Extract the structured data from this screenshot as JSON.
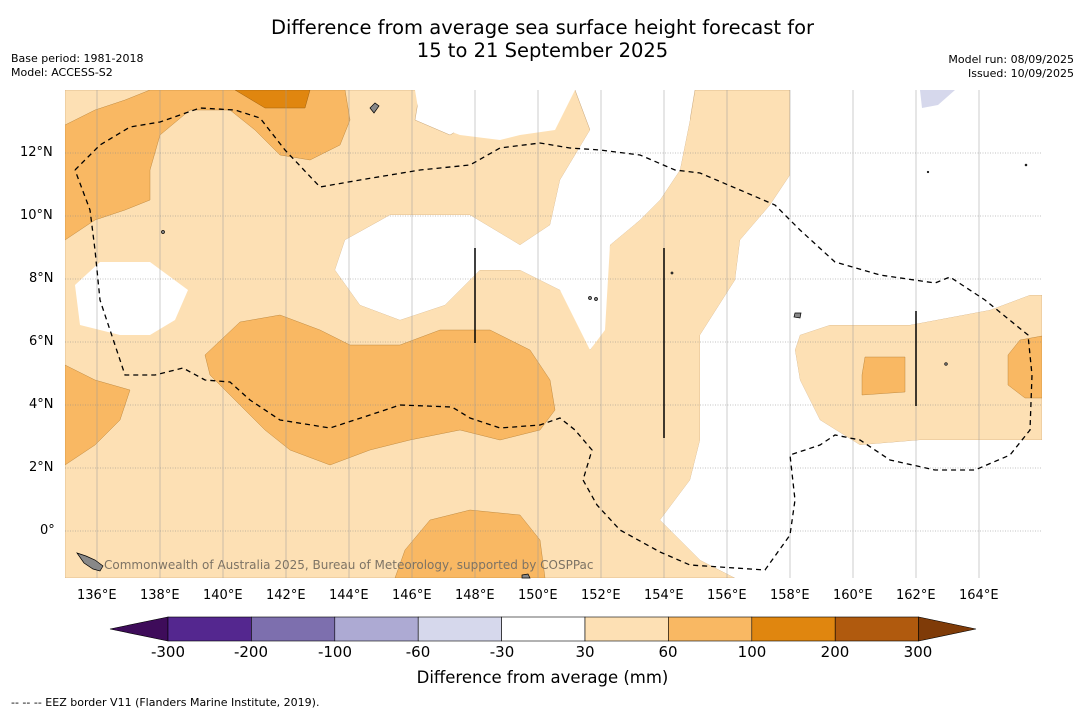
{
  "header": {
    "title_line1": "Difference from average sea surface height forecast for",
    "title_line2": "15 to 21 September 2025",
    "base_period": "Base period: 1981-2018",
    "model": "Model: ACCESS-S2",
    "model_run": "Model run: 08/09/2025",
    "issued": "Issued: 10/09/2025"
  },
  "map": {
    "lon_labels": [
      "136°E",
      "138°E",
      "140°E",
      "142°E",
      "144°E",
      "146°E",
      "148°E",
      "150°E",
      "152°E",
      "154°E",
      "156°E",
      "158°E",
      "160°E",
      "162°E",
      "164°E"
    ],
    "lat_labels": [
      "12°N",
      "10°N",
      "8°N",
      "6°N",
      "4°N",
      "2°N",
      "0°"
    ],
    "copyright": "Commonwealth of Australia 2025, Bureau of Meteorology, supported by COSPPac",
    "colors": {
      "c30_60": "#fde0b4",
      "c60_100": "#f9b863",
      "c100_200": "#e0860f",
      "c_neg60_30": "#d6d8ec"
    }
  },
  "colorbar": {
    "title": "Difference from average (mm)",
    "tick_labels": [
      "-300",
      "-200",
      "-100",
      "-60",
      "-30",
      "30",
      "60",
      "100",
      "200",
      "300"
    ],
    "colors": [
      "#3e0c5a",
      "#54278f",
      "#7d6fae",
      "#adaad3",
      "#d6d8ec",
      "#ffffff",
      "#fde0b4",
      "#f9b863",
      "#e0860f",
      "#b05a0e",
      "#7f3b08"
    ]
  },
  "footer": {
    "legend": "-- -- -- EEZ border V11 (Flanders Marine Institute, 2019)."
  }
}
